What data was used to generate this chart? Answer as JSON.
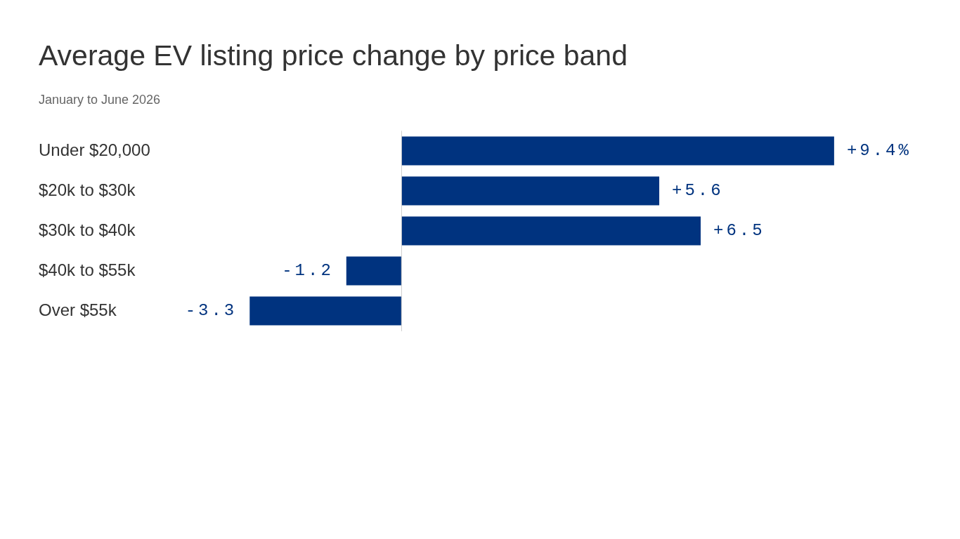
{
  "chart_data": {
    "type": "bar",
    "orientation": "horizontal",
    "title": "Average EV listing price change by price band",
    "subtitle": "January to June 2026",
    "categories": [
      "Under $20,000",
      "$20k to $30k",
      "$30k to $40k",
      "$40k to $55k",
      "Over $55k"
    ],
    "values": [
      9.4,
      5.6,
      6.5,
      -1.2,
      -3.3
    ],
    "color": "#00337f",
    "value_labels": [
      "+9.4%",
      "+5.6",
      "+6.5",
      "-1.2",
      "-3.3"
    ]
  }
}
